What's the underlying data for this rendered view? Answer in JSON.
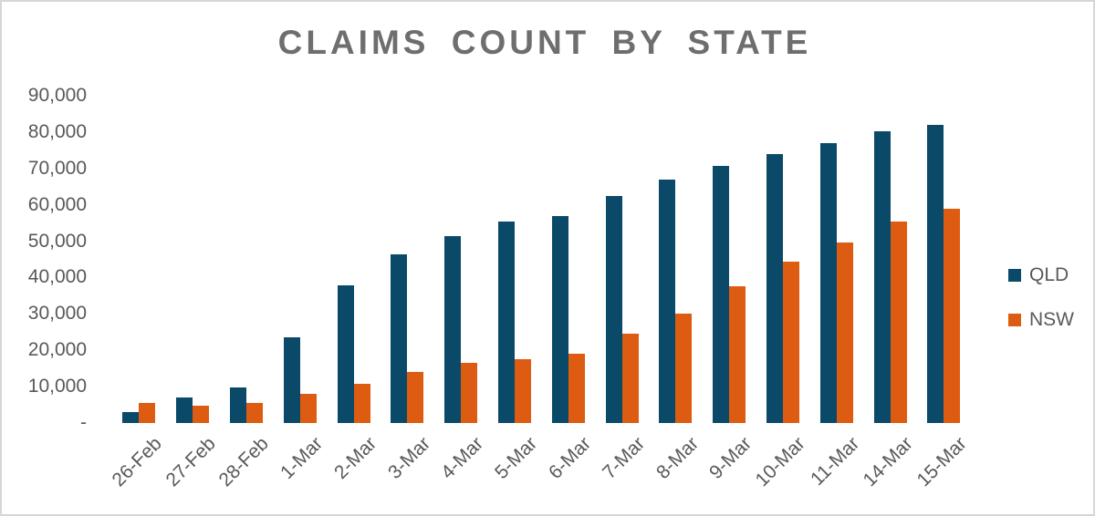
{
  "chart_data": {
    "type": "bar",
    "title": "CLAIMS COUNT BY STATE",
    "categories": [
      "26-Feb",
      "27-Feb",
      "28-Feb",
      "1-Mar",
      "2-Mar",
      "3-Mar",
      "4-Mar",
      "5-Mar",
      "6-Mar",
      "7-Mar",
      "8-Mar",
      "9-Mar",
      "10-Mar",
      "11-Mar",
      "14-Mar",
      "15-Mar"
    ],
    "series": [
      {
        "name": "QLD",
        "color": "#0a4a68",
        "values": [
          3100,
          7000,
          9900,
          23500,
          37900,
          46400,
          51400,
          55400,
          56800,
          62500,
          67000,
          70600,
          73900,
          77000,
          80300,
          82000
        ]
      },
      {
        "name": "NSW",
        "color": "#dd5c12",
        "values": [
          5500,
          4700,
          5600,
          8000,
          10800,
          14100,
          16600,
          17600,
          19100,
          24700,
          30000,
          37500,
          44400,
          49700,
          55500,
          58900
        ]
      }
    ],
    "ylim": [
      0,
      90000
    ],
    "yticks": [
      {
        "value": 90000,
        "label": "90,000"
      },
      {
        "value": 80000,
        "label": "80,000"
      },
      {
        "value": 70000,
        "label": "70,000"
      },
      {
        "value": 60000,
        "label": "60,000"
      },
      {
        "value": 50000,
        "label": "50,000"
      },
      {
        "value": 40000,
        "label": "40,000"
      },
      {
        "value": 30000,
        "label": "30,000"
      },
      {
        "value": 20000,
        "label": "20,000"
      },
      {
        "value": 10000,
        "label": "10,000"
      },
      {
        "value": 0,
        "label": "-"
      }
    ],
    "grid": false,
    "legend_position": "right",
    "axis_text_color": "#595959",
    "title_color": "#6e6e6e"
  }
}
